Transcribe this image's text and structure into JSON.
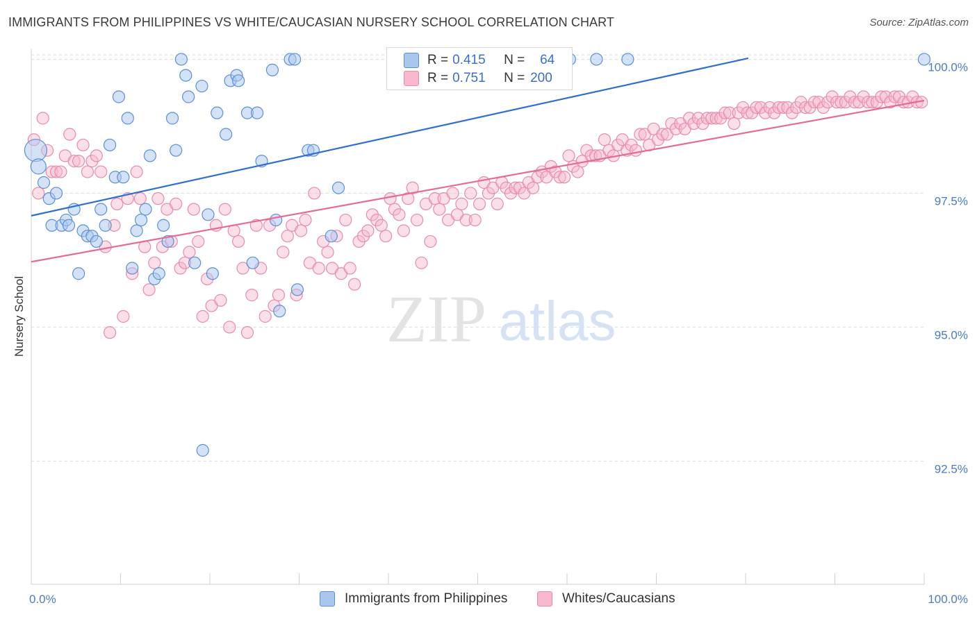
{
  "title": "IMMIGRANTS FROM PHILIPPINES VS WHITE/CAUCASIAN NURSERY SCHOOL CORRELATION CHART",
  "source": "Source: ZipAtlas.com",
  "watermark": {
    "zip": "ZIP",
    "atlas": "atlas"
  },
  "colors": {
    "blue_fill": "#a9c6ef",
    "blue_stroke": "#5b8fd6",
    "blue_line": "#2f6fd1",
    "pink_fill": "#f5b8cc",
    "pink_stroke": "#e98aab",
    "pink_line": "#e56b94",
    "tick_text": "#4a7cc4",
    "grid": "#dddddd"
  },
  "legend_top": [
    {
      "r_label": "R =",
      "r_value": "0.415",
      "n_label": "N =",
      "n_value": "64"
    },
    {
      "r_label": "R =",
      "r_value": "0.751",
      "n_label": "N =",
      "n_value": "200"
    }
  ],
  "legend_bottom": [
    "Immigrants from Philippines",
    "Whites/Caucasians"
  ],
  "chart_data": {
    "type": "scatter",
    "xlabel": "",
    "ylabel": "Nursery School",
    "xlim": [
      0,
      100
    ],
    "ylim": [
      90.2,
      100.2
    ],
    "x_tick_labels": [
      "0.0%",
      "100.0%"
    ],
    "y_ticks": [
      92.5,
      95.0,
      97.5,
      100.0
    ],
    "y_tick_labels": [
      "92.5%",
      "95.0%",
      "97.5%",
      "100.0%"
    ],
    "grid": true,
    "series": [
      {
        "name": "Immigrants from Philippines",
        "R": 0.415,
        "N": 64,
        "trend": {
          "x": [
            0,
            80.3
          ],
          "y": [
            97.08,
            100.02
          ]
        },
        "points": [
          [
            0.5,
            98.3
          ],
          [
            0.8,
            98.0
          ],
          [
            1.4,
            97.7
          ],
          [
            2.0,
            97.4
          ],
          [
            2.8,
            97.5
          ],
          [
            2.3,
            96.9
          ],
          [
            3.4,
            96.9
          ],
          [
            3.9,
            97.0
          ],
          [
            4.2,
            96.9
          ],
          [
            4.8,
            97.2
          ],
          [
            5.3,
            96.0
          ],
          [
            5.8,
            96.8
          ],
          [
            6.3,
            96.7
          ],
          [
            6.8,
            96.7
          ],
          [
            7.3,
            96.6
          ],
          [
            7.8,
            97.2
          ],
          [
            8.3,
            96.9
          ],
          [
            8.8,
            98.4
          ],
          [
            9.4,
            97.8
          ],
          [
            9.8,
            99.3
          ],
          [
            10.3,
            97.8
          ],
          [
            10.8,
            98.9
          ],
          [
            11.3,
            96.1
          ],
          [
            11.8,
            96.8
          ],
          [
            12.3,
            97.0
          ],
          [
            12.8,
            97.2
          ],
          [
            13.3,
            98.2
          ],
          [
            13.8,
            95.9
          ],
          [
            14.3,
            96.0
          ],
          [
            14.8,
            96.9
          ],
          [
            15.3,
            96.6
          ],
          [
            15.8,
            98.9
          ],
          [
            16.2,
            98.3
          ],
          [
            16.8,
            100.0
          ],
          [
            17.3,
            99.7
          ],
          [
            17.6,
            99.3
          ],
          [
            18.3,
            96.2
          ],
          [
            19.1,
            99.5
          ],
          [
            19.2,
            92.7
          ],
          [
            19.8,
            97.1
          ],
          [
            20.3,
            96.0
          ],
          [
            20.8,
            99.0
          ],
          [
            21.8,
            98.6
          ],
          [
            22.3,
            99.6
          ],
          [
            23.0,
            99.7
          ],
          [
            23.2,
            99.6
          ],
          [
            24.2,
            99.0
          ],
          [
            24.8,
            96.2
          ],
          [
            25.3,
            99.0
          ],
          [
            25.8,
            98.1
          ],
          [
            27.0,
            99.8
          ],
          [
            27.4,
            97.0
          ],
          [
            27.8,
            95.3
          ],
          [
            29.0,
            100.0
          ],
          [
            29.5,
            100.0
          ],
          [
            29.8,
            95.7
          ],
          [
            31.0,
            98.3
          ],
          [
            31.6,
            98.3
          ],
          [
            33.6,
            96.7
          ],
          [
            34.4,
            97.6
          ],
          [
            60.3,
            100.0
          ],
          [
            63.3,
            100.0
          ],
          [
            66.8,
            100.0
          ],
          [
            100.0,
            100.0
          ]
        ]
      },
      {
        "name": "Whites/Caucasians",
        "R": 0.751,
        "N": 200,
        "trend": {
          "x": [
            0,
            100
          ],
          "y": [
            96.22,
            99.23
          ]
        },
        "points": [
          [
            0.3,
            98.5
          ],
          [
            0.8,
            97.5
          ],
          [
            1.3,
            98.9
          ],
          [
            1.8,
            98.3
          ],
          [
            2.3,
            97.9
          ],
          [
            2.8,
            97.9
          ],
          [
            3.3,
            97.9
          ],
          [
            3.8,
            98.2
          ],
          [
            4.3,
            98.6
          ],
          [
            4.8,
            98.1
          ],
          [
            5.3,
            98.1
          ],
          [
            5.8,
            98.4
          ],
          [
            6.3,
            97.9
          ],
          [
            6.8,
            98.1
          ],
          [
            7.3,
            98.2
          ],
          [
            7.8,
            97.9
          ],
          [
            8.3,
            96.5
          ],
          [
            8.8,
            94.9
          ],
          [
            9.3,
            96.9
          ],
          [
            9.6,
            97.3
          ],
          [
            10.3,
            95.2
          ],
          [
            10.8,
            97.4
          ],
          [
            11.3,
            96.0
          ],
          [
            11.8,
            97.9
          ],
          [
            12.2,
            97.4
          ],
          [
            12.7,
            96.5
          ],
          [
            13.2,
            95.7
          ],
          [
            13.8,
            96.2
          ],
          [
            14.2,
            97.4
          ],
          [
            14.7,
            96.5
          ],
          [
            15.2,
            97.2
          ],
          [
            15.7,
            96.6
          ],
          [
            16.2,
            97.3
          ],
          [
            16.7,
            96.1
          ],
          [
            17.2,
            96.2
          ],
          [
            17.7,
            96.4
          ],
          [
            18.2,
            97.2
          ],
          [
            18.7,
            96.6
          ],
          [
            19.2,
            95.2
          ],
          [
            19.7,
            95.9
          ],
          [
            20.2,
            95.4
          ],
          [
            20.7,
            96.9
          ],
          [
            21.2,
            95.5
          ],
          [
            21.7,
            97.2
          ],
          [
            22.2,
            95.0
          ],
          [
            22.7,
            96.8
          ],
          [
            23.2,
            96.6
          ],
          [
            23.7,
            96.1
          ],
          [
            24.2,
            94.9
          ],
          [
            24.7,
            95.6
          ],
          [
            25.2,
            96.9
          ],
          [
            25.7,
            96.1
          ],
          [
            26.2,
            95.2
          ],
          [
            26.7,
            96.9
          ],
          [
            27.2,
            95.4
          ],
          [
            27.7,
            95.6
          ],
          [
            28.2,
            96.4
          ],
          [
            28.7,
            96.7
          ],
          [
            29.2,
            96.9
          ],
          [
            29.7,
            95.6
          ],
          [
            30.2,
            96.8
          ],
          [
            30.7,
            97.0
          ],
          [
            31.2,
            96.2
          ],
          [
            31.7,
            97.5
          ],
          [
            32.2,
            96.1
          ],
          [
            32.7,
            96.6
          ],
          [
            33.2,
            96.4
          ],
          [
            33.7,
            96.1
          ],
          [
            34.2,
            96.7
          ],
          [
            34.7,
            96.0
          ],
          [
            35.2,
            97.0
          ],
          [
            35.7,
            96.1
          ],
          [
            36.2,
            95.8
          ],
          [
            36.7,
            96.6
          ],
          [
            37.2,
            96.7
          ],
          [
            37.7,
            96.8
          ],
          [
            38.2,
            97.1
          ],
          [
            38.7,
            97.0
          ],
          [
            39.2,
            96.9
          ],
          [
            39.7,
            96.7
          ],
          [
            40.2,
            97.4
          ],
          [
            40.7,
            97.2
          ],
          [
            41.2,
            97.1
          ],
          [
            41.7,
            96.8
          ],
          [
            42.2,
            97.4
          ],
          [
            42.7,
            97.6
          ],
          [
            43.2,
            97.0
          ],
          [
            43.7,
            96.2
          ],
          [
            44.2,
            97.3
          ],
          [
            44.7,
            96.6
          ],
          [
            45.2,
            97.4
          ],
          [
            45.7,
            97.2
          ],
          [
            46.2,
            97.4
          ],
          [
            46.7,
            97.0
          ],
          [
            47.2,
            97.5
          ],
          [
            47.7,
            97.1
          ],
          [
            48.2,
            97.3
          ],
          [
            48.7,
            97.0
          ],
          [
            49.2,
            97.5
          ],
          [
            49.7,
            97.0
          ],
          [
            50.2,
            97.3
          ],
          [
            50.7,
            97.7
          ],
          [
            51.2,
            97.5
          ],
          [
            51.7,
            97.6
          ],
          [
            52.2,
            97.3
          ],
          [
            52.7,
            97.7
          ],
          [
            53.2,
            97.6
          ],
          [
            53.7,
            97.5
          ],
          [
            54.2,
            97.6
          ],
          [
            54.7,
            97.6
          ],
          [
            55.2,
            97.5
          ],
          [
            55.7,
            97.7
          ],
          [
            56.2,
            97.6
          ],
          [
            56.7,
            97.8
          ],
          [
            57.2,
            97.9
          ],
          [
            57.7,
            97.8
          ],
          [
            58.2,
            98.0
          ],
          [
            58.7,
            97.9
          ],
          [
            59.2,
            97.8
          ],
          [
            59.7,
            97.8
          ],
          [
            60.2,
            98.2
          ],
          [
            60.7,
            98.0
          ],
          [
            61.2,
            97.9
          ],
          [
            61.7,
            98.1
          ],
          [
            62.2,
            98.3
          ],
          [
            62.7,
            98.2
          ],
          [
            63.2,
            98.2
          ],
          [
            63.7,
            98.2
          ],
          [
            64.2,
            98.5
          ],
          [
            64.7,
            98.3
          ],
          [
            65.2,
            98.2
          ],
          [
            65.7,
            98.4
          ],
          [
            66.2,
            98.5
          ],
          [
            66.7,
            98.3
          ],
          [
            67.2,
            98.4
          ],
          [
            67.7,
            98.3
          ],
          [
            68.2,
            98.6
          ],
          [
            68.7,
            98.6
          ],
          [
            69.2,
            98.4
          ],
          [
            69.7,
            98.7
          ],
          [
            70.2,
            98.5
          ],
          [
            70.7,
            98.6
          ],
          [
            71.2,
            98.6
          ],
          [
            71.7,
            98.8
          ],
          [
            72.2,
            98.7
          ],
          [
            72.7,
            98.8
          ],
          [
            73.2,
            98.7
          ],
          [
            73.7,
            98.9
          ],
          [
            74.2,
            98.8
          ],
          [
            74.7,
            98.9
          ],
          [
            75.2,
            98.8
          ],
          [
            75.7,
            98.9
          ],
          [
            76.2,
            98.9
          ],
          [
            76.7,
            98.9
          ],
          [
            77.2,
            98.9
          ],
          [
            77.7,
            99.0
          ],
          [
            78.2,
            99.0
          ],
          [
            78.7,
            98.8
          ],
          [
            79.2,
            99.0
          ],
          [
            79.7,
            99.1
          ],
          [
            80.2,
            99.0
          ],
          [
            80.7,
            99.0
          ],
          [
            81.2,
            99.1
          ],
          [
            81.7,
            99.1
          ],
          [
            82.2,
            99.0
          ],
          [
            82.7,
            99.1
          ],
          [
            83.2,
            99.0
          ],
          [
            83.7,
            99.1
          ],
          [
            84.2,
            99.1
          ],
          [
            84.7,
            99.1
          ],
          [
            85.2,
            99.0
          ],
          [
            85.7,
            99.1
          ],
          [
            86.2,
            99.2
          ],
          [
            86.7,
            99.1
          ],
          [
            87.2,
            99.1
          ],
          [
            87.7,
            99.2
          ],
          [
            88.2,
            99.2
          ],
          [
            88.7,
            99.1
          ],
          [
            89.2,
            99.2
          ],
          [
            89.7,
            99.3
          ],
          [
            90.2,
            99.2
          ],
          [
            90.7,
            99.2
          ],
          [
            91.2,
            99.2
          ],
          [
            91.7,
            99.3
          ],
          [
            92.2,
            99.2
          ],
          [
            92.7,
            99.2
          ],
          [
            93.2,
            99.3
          ],
          [
            93.7,
            99.2
          ],
          [
            94.2,
            99.2
          ],
          [
            94.7,
            99.2
          ],
          [
            95.2,
            99.3
          ],
          [
            95.7,
            99.3
          ],
          [
            96.2,
            99.2
          ],
          [
            96.7,
            99.3
          ],
          [
            97.2,
            99.3
          ],
          [
            97.7,
            99.2
          ],
          [
            98.2,
            99.2
          ],
          [
            98.7,
            99.3
          ],
          [
            99.2,
            99.2
          ],
          [
            99.7,
            99.2
          ]
        ]
      }
    ]
  }
}
